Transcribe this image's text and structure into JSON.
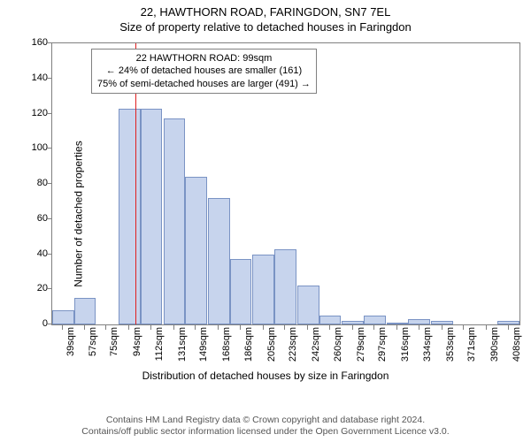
{
  "title": {
    "line1": "22, HAWTHORN ROAD, FARINGDON, SN7 7EL",
    "line2": "Size of property relative to detached houses in Faringdon"
  },
  "chart": {
    "type": "histogram",
    "yaxis": {
      "title": "Number of detached properties",
      "min": 0,
      "max": 160,
      "ticks": [
        0,
        20,
        40,
        60,
        80,
        100,
        120,
        140,
        160
      ]
    },
    "xaxis": {
      "title": "Distribution of detached houses by size in Faringdon",
      "ticks": [
        "39sqm",
        "57sqm",
        "75sqm",
        "94sqm",
        "112sqm",
        "131sqm",
        "149sqm",
        "168sqm",
        "186sqm",
        "205sqm",
        "223sqm",
        "242sqm",
        "260sqm",
        "279sqm",
        "297sqm",
        "316sqm",
        "334sqm",
        "353sqm",
        "371sqm",
        "390sqm",
        "408sqm"
      ]
    },
    "bars": {
      "values": [
        8,
        15,
        0,
        123,
        123,
        117,
        84,
        72,
        37,
        40,
        43,
        22,
        5,
        2,
        5,
        1,
        3,
        2,
        0,
        0,
        2
      ],
      "fill_color": "#c7d4ed",
      "stroke_color": "#7a93c4"
    },
    "marker": {
      "x_value": 99,
      "color": "#e02020"
    },
    "info_box": {
      "line1": "22 HAWTHORN ROAD: 99sqm",
      "line2": "← 24% of detached houses are smaller (161)",
      "line3": "75% of semi-detached houses are larger (491) →"
    },
    "background_color": "#ffffff",
    "border_color": "#808080",
    "font_family": "Arial",
    "title_fontsize": 13,
    "axis_title_fontsize": 12,
    "tick_fontsize": 11
  },
  "footer": {
    "line1": "Contains HM Land Registry data © Crown copyright and database right 2024.",
    "line2": "Contains/off public sector information licensed under the Open Government Licence v3.0."
  }
}
